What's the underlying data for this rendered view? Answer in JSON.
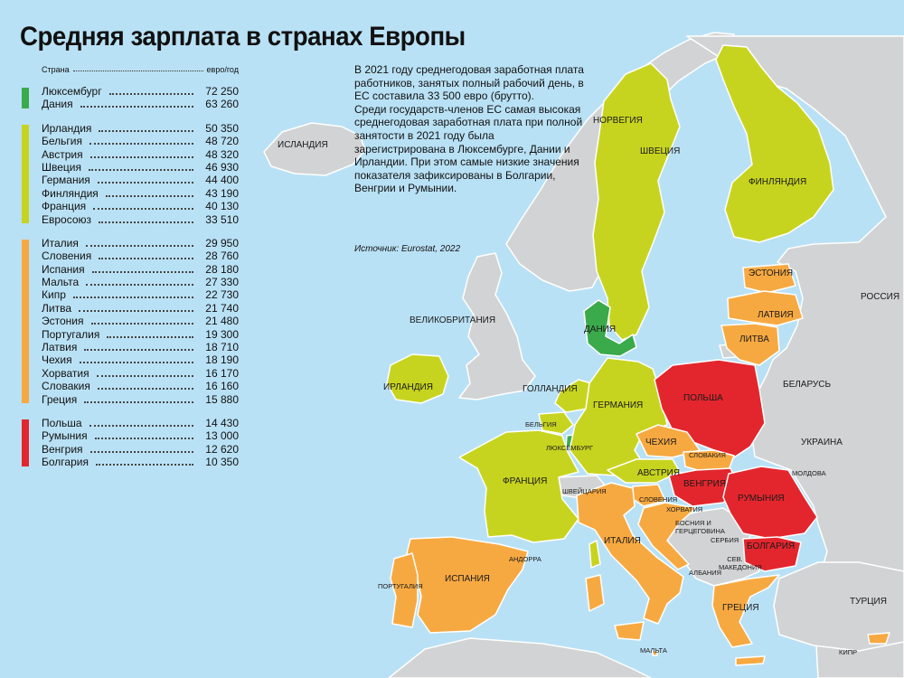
{
  "title": "Средняя зарплата в странах Европы",
  "legend": {
    "header_country": "Страна",
    "header_unit": "евро/год",
    "groups": [
      {
        "color": "#3aaa4b",
        "rows": [
          {
            "name": "Люксембург",
            "value": "72 250"
          },
          {
            "name": "Дания",
            "value": "63 260"
          }
        ]
      },
      {
        "color": "#c7d41f",
        "rows": [
          {
            "name": "Ирландия",
            "value": "50 350"
          },
          {
            "name": "Бельгия",
            "value": "48 720"
          },
          {
            "name": "Австрия",
            "value": "48 320"
          },
          {
            "name": "Швеция",
            "value": "46 930"
          },
          {
            "name": "Германия",
            "value": "44 400"
          },
          {
            "name": "Финляндия",
            "value": "43 190"
          },
          {
            "name": "Франция",
            "value": "40 130"
          },
          {
            "name": "Евросоюз",
            "value": "33 510"
          }
        ]
      },
      {
        "color": "#f7a941",
        "rows": [
          {
            "name": "Италия",
            "value": "29 950"
          },
          {
            "name": "Словения",
            "value": "28 760"
          },
          {
            "name": "Испания",
            "value": "28 180"
          },
          {
            "name": "Мальта",
            "value": "27 330"
          },
          {
            "name": "Кипр",
            "value": "22 730"
          },
          {
            "name": "Литва",
            "value": "21 740"
          },
          {
            "name": "Эстония",
            "value": "21 480"
          },
          {
            "name": "Португалия",
            "value": "19 300"
          },
          {
            "name": "Латвия",
            "value": "18 710"
          },
          {
            "name": "Чехия",
            "value": "18 190"
          },
          {
            "name": "Хорватия",
            "value": "16 170"
          },
          {
            "name": "Словакия",
            "value": "16 160"
          },
          {
            "name": "Греция",
            "value": "15 880"
          }
        ]
      },
      {
        "color": "#e3262d",
        "rows": [
          {
            "name": "Польша",
            "value": "14 430"
          },
          {
            "name": "Румыния",
            "value": "13 000"
          },
          {
            "name": "Венгрия",
            "value": "12 620"
          },
          {
            "name": "Болгария",
            "value": "10 350"
          }
        ]
      }
    ]
  },
  "info": {
    "paragraph_1": "В 2021 году среднегодовая заработная плата работников, занятых полный рабочий день, в ЕС составила 33 500 евро (брутто).",
    "paragraph_2": "Среди государств-членов ЕС самая высокая среднегодовая заработная плата при полной занятости в 2021 году была зарегистрирована в Люксембурге, Дании и Ирландии. При этом самые низкие значения показателя зафиксированы в Болгарии, Венгрии и Румынии.",
    "source": "Источник: Eurostat, 2022"
  },
  "map_colors": {
    "sea": "#b9e1f5",
    "non_eu_land": "#d2d3d4",
    "border": "#ffffff"
  },
  "map_labels": {
    "iceland": "ИСЛАНДИЯ",
    "norway": "НОРВЕГИЯ",
    "sweden": "ШВЕЦИЯ",
    "finland": "ФИНЛЯНДИЯ",
    "estonia": "ЭСТОНИЯ",
    "latvia": "ЛАТВИЯ",
    "lithuania": "ЛИТВА",
    "russia": "РОССИЯ",
    "belarus": "БЕЛАРУСЬ",
    "ukraine": "УКРАИНА",
    "moldova": "МОЛДОВА",
    "uk": "ВЕЛИКОБРИТАНИЯ",
    "ireland": "ИРЛАНДИЯ",
    "denmark": "ДАНИЯ",
    "netherlands": "ГОЛЛАНДИЯ",
    "belgium": "БЕЛЬГИЯ",
    "luxembourg": "ЛЮКСЕМБУРГ",
    "germany": "ГЕРМАНИЯ",
    "poland": "ПОЛЬША",
    "czechia": "ЧЕХИЯ",
    "slovakia": "СЛОВАКИЯ",
    "austria": "АВСТРИЯ",
    "hungary": "ВЕНГРИЯ",
    "romania": "РУМЫНИЯ",
    "france": "ФРАНЦИЯ",
    "switzerland": "ШВЕЙЦАРИЯ",
    "slovenia": "СЛОВЕНИЯ",
    "croatia": "ХОРВАТИЯ",
    "bosnia": "БОСНИЯ И ГЕРЦЕГОВИНА",
    "serbia": "СЕРБИЯ",
    "bulgaria": "БОЛГАРИЯ",
    "north_macedonia": "СЕВ. МАКЕДОНИЯ",
    "albania": "АЛБАНИЯ",
    "italy": "ИТАЛИЯ",
    "andorra": "АНДОРРА",
    "spain": "ИСПАНИЯ",
    "portugal": "ПОРТУГАЛИЯ",
    "greece": "ГРЕЦИЯ",
    "turkey": "ТУРЦИЯ",
    "malta": "МАЛЬТА",
    "cyprus": "КИПР"
  }
}
